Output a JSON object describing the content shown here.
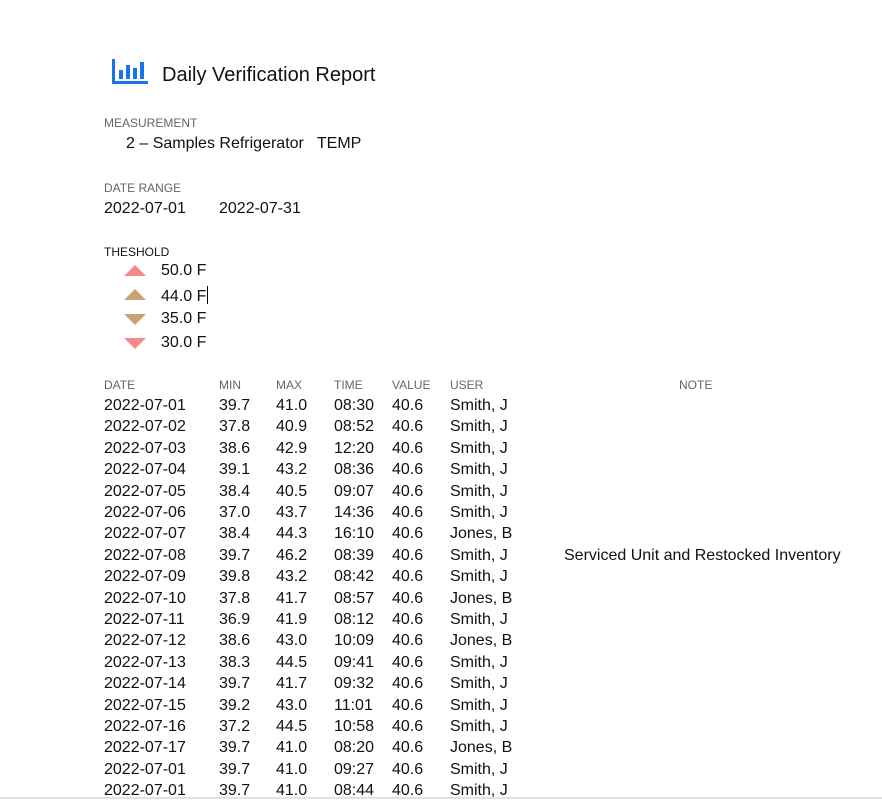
{
  "header": {
    "title": "Daily Verification Report",
    "icon": "bar-chart-icon",
    "icon_color": "#1a73e8"
  },
  "measurement": {
    "label": "MEASUREMENT",
    "value": "2 – Samples Refrigerator   TEMP"
  },
  "date_range": {
    "label": "DATE RANGE",
    "start": "2022-07-01",
    "end": "2022-07-31"
  },
  "threshold": {
    "label": "THESHOLD",
    "items": [
      {
        "value": "50.0 F",
        "icon": "triangle-up-icon",
        "color": "#f48a8a"
      },
      {
        "value": "44.0 F",
        "icon": "triangle-up-icon",
        "color": "#c9a276"
      },
      {
        "value": "35.0 F",
        "icon": "triangle-down-icon",
        "color": "#c9a276"
      },
      {
        "value": "30.0 F",
        "icon": "triangle-down-icon",
        "color": "#f48a8a"
      }
    ]
  },
  "table": {
    "columns": {
      "date": "DATE",
      "min": "MIN",
      "max": "MAX",
      "time": "TIME",
      "value": "VALUE",
      "user": "USER",
      "note": "NOTE"
    },
    "rows": [
      {
        "date": "2022-07-01",
        "min": "39.7",
        "max": "41.0",
        "time": "08:30",
        "value": "40.6",
        "user": "Smith, J",
        "note": ""
      },
      {
        "date": "2022-07-02",
        "min": "37.8",
        "max": "40.9",
        "time": "08:52",
        "value": "40.6",
        "user": "Smith, J",
        "note": ""
      },
      {
        "date": "2022-07-03",
        "min": "38.6",
        "max": "42.9",
        "time": "12:20",
        "value": "40.6",
        "user": "Smith, J",
        "note": ""
      },
      {
        "date": "2022-07-04",
        "min": "39.1",
        "max": "43.2",
        "time": "08:36",
        "value": "40.6",
        "user": "Smith, J",
        "note": ""
      },
      {
        "date": "2022-07-05",
        "min": "38.4",
        "max": "40.5",
        "time": "09:07",
        "value": "40.6",
        "user": "Smith, J",
        "note": ""
      },
      {
        "date": "2022-07-06",
        "min": "37.0",
        "max": "43.7",
        "time": "14:36",
        "value": "40.6",
        "user": "Smith, J",
        "note": ""
      },
      {
        "date": "2022-07-07",
        "min": "38.4",
        "max": "44.3",
        "time": "16:10",
        "value": "40.6",
        "user": "Jones, B",
        "note": ""
      },
      {
        "date": "2022-07-08",
        "min": "39.7",
        "max": "46.2",
        "time": "08:39",
        "value": "40.6",
        "user": "Smith, J",
        "note": "Serviced Unit and Restocked Inventory"
      },
      {
        "date": "2022-07-09",
        "min": "39.8",
        "max": "43.2",
        "time": "08:42",
        "value": "40.6",
        "user": "Smith, J",
        "note": ""
      },
      {
        "date": "2022-07-10",
        "min": "37.8",
        "max": "41.7",
        "time": "08:57",
        "value": "40.6",
        "user": "Jones, B",
        "note": ""
      },
      {
        "date": "2022-07-11",
        "min": "36.9",
        "max": "41.9",
        "time": "08:12",
        "value": "40.6",
        "user": "Smith, J",
        "note": ""
      },
      {
        "date": "2022-07-12",
        "min": "38.6",
        "max": "43.0",
        "time": "10:09",
        "value": "40.6",
        "user": "Jones, B",
        "note": ""
      },
      {
        "date": "2022-07-13",
        "min": "38.3",
        "max": "44.5",
        "time": "09:41",
        "value": "40.6",
        "user": "Smith, J",
        "note": ""
      },
      {
        "date": "2022-07-14",
        "min": "39.7",
        "max": "41.7",
        "time": "09:32",
        "value": "40.6",
        "user": "Smith, J",
        "note": ""
      },
      {
        "date": "2022-07-15",
        "min": "39.2",
        "max": "43.0",
        "time": "11:01",
        "value": "40.6",
        "user": "Smith, J",
        "note": ""
      },
      {
        "date": "2022-07-16",
        "min": "37.2",
        "max": "44.5",
        "time": "10:58",
        "value": "40.6",
        "user": "Smith, J",
        "note": ""
      },
      {
        "date": "2022-07-17",
        "min": "39.7",
        "max": "41.0",
        "time": "08:20",
        "value": "40.6",
        "user": "Jones, B",
        "note": ""
      },
      {
        "date": "2022-07-01",
        "min": "39.7",
        "max": "41.0",
        "time": "09:27",
        "value": "40.6",
        "user": "Smith, J",
        "note": ""
      },
      {
        "date": "2022-07-01",
        "min": "39.7",
        "max": "41.0",
        "time": "08:44",
        "value": "40.6",
        "user": "Smith, J",
        "note": ""
      }
    ]
  }
}
